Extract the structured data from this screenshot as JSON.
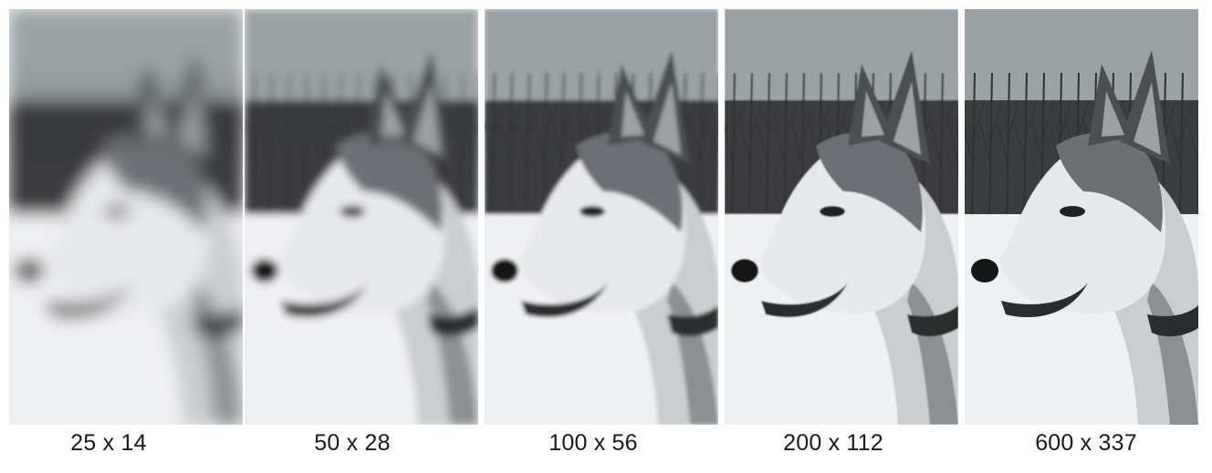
{
  "panels": [
    {
      "label": "25 x 14",
      "blur": 9
    },
    {
      "label": "50 x 28",
      "blur": 4.5
    },
    {
      "label": "100 x 56",
      "blur": 2
    },
    {
      "label": "200 x 112",
      "blur": 0.8
    },
    {
      "label": "600 x 337",
      "blur": 0
    }
  ],
  "colors": {
    "sky": "#9aa2a6",
    "snow": "#eef1f3",
    "trees": "#2e3234",
    "fur_dark": "#4a4f52",
    "fur_light": "#e6e9eb"
  }
}
